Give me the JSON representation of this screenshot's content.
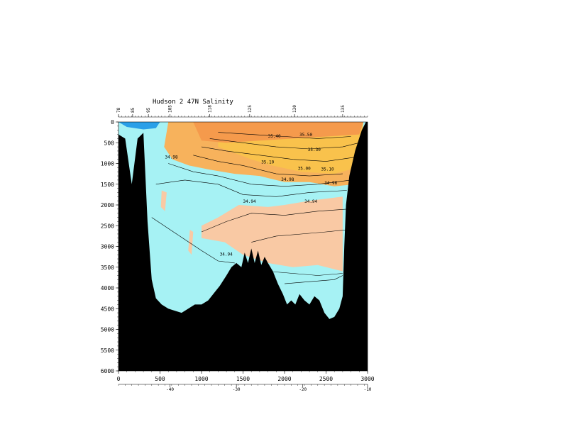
{
  "chart_data": {
    "type": "heatmap",
    "title": "Hudson 2 47N Salinity",
    "xlabel": "",
    "ylabel": "",
    "xlim": [
      0,
      3000
    ],
    "ylim": [
      6000,
      0
    ],
    "x_ticks": [
      "0",
      "500",
      "1000",
      "1500",
      "2000",
      "2500",
      "3000"
    ],
    "y_ticks": [
      "0",
      "500",
      "1000",
      "1500",
      "2000",
      "2500",
      "3000",
      "3500",
      "4000",
      "4500",
      "5000",
      "5500",
      "6000"
    ],
    "longitude_ticks": [
      "-40",
      "-30",
      "-20",
      "-10"
    ],
    "longitude_tick_positions_km": [
      620,
      1420,
      2220,
      3000
    ],
    "station_ticks": [
      "78",
      "85",
      "95",
      "105",
      "118",
      "125",
      "130",
      "135"
    ],
    "station_positions_km": [
      0,
      170,
      360,
      620,
      1100,
      1580,
      2120,
      2700
    ],
    "color_bands": [
      {
        "range": "< 34.90",
        "color": "#2a9fe8"
      },
      {
        "range": "34.90-34.94",
        "color": "#a6f2f4"
      },
      {
        "range": "34.94-34.98",
        "color": "#f9c9a4"
      },
      {
        "range": "34.98-35.10",
        "color": "#f7b25c"
      },
      {
        "range": "35.10-35.50",
        "color": "#f9c24c"
      },
      {
        "range": "> 35.50",
        "color": "#f59a4c"
      }
    ],
    "bottom_profile": [
      [
        0,
        0
      ],
      [
        0,
        300
      ],
      [
        80,
        400
      ],
      [
        160,
        1500
      ],
      [
        230,
        400
      ],
      [
        300,
        260
      ],
      [
        350,
        2400
      ],
      [
        400,
        3800
      ],
      [
        450,
        4250
      ],
      [
        520,
        4400
      ],
      [
        600,
        4500
      ],
      [
        680,
        4550
      ],
      [
        760,
        4600
      ],
      [
        840,
        4500
      ],
      [
        920,
        4400
      ],
      [
        1000,
        4400
      ],
      [
        1080,
        4300
      ],
      [
        1160,
        4100
      ],
      [
        1220,
        3950
      ],
      [
        1300,
        3700
      ],
      [
        1360,
        3500
      ],
      [
        1420,
        3400
      ],
      [
        1480,
        3500
      ],
      [
        1520,
        3150
      ],
      [
        1560,
        3400
      ],
      [
        1600,
        3050
      ],
      [
        1640,
        3400
      ],
      [
        1680,
        3100
      ],
      [
        1720,
        3450
      ],
      [
        1760,
        3250
      ],
      [
        1800,
        3400
      ],
      [
        1860,
        3600
      ],
      [
        1920,
        3900
      ],
      [
        1980,
        4150
      ],
      [
        2030,
        4400
      ],
      [
        2080,
        4300
      ],
      [
        2130,
        4400
      ],
      [
        2180,
        4150
      ],
      [
        2240,
        4300
      ],
      [
        2300,
        4400
      ],
      [
        2360,
        4200
      ],
      [
        2420,
        4300
      ],
      [
        2480,
        4600
      ],
      [
        2540,
        4750
      ],
      [
        2600,
        4700
      ],
      [
        2660,
        4500
      ],
      [
        2700,
        4200
      ],
      [
        2720,
        3000
      ],
      [
        2740,
        2000
      ],
      [
        2780,
        1300
      ],
      [
        2850,
        700
      ],
      [
        2930,
        200
      ],
      [
        2980,
        0
      ],
      [
        3000,
        0
      ]
    ],
    "contour_labels": [
      {
        "text": "34.98",
        "x": 560,
        "y": 880
      },
      {
        "text": "35.40",
        "x": 1800,
        "y": 380
      },
      {
        "text": "35.50",
        "x": 2180,
        "y": 340
      },
      {
        "text": "35.30",
        "x": 2280,
        "y": 700
      },
      {
        "text": "35.10",
        "x": 1720,
        "y": 1000
      },
      {
        "text": "35.00",
        "x": 2160,
        "y": 1150
      },
      {
        "text": "35.10",
        "x": 2440,
        "y": 1170
      },
      {
        "text": "34.98",
        "x": 1960,
        "y": 1420
      },
      {
        "text": "34.96",
        "x": 2480,
        "y": 1500
      },
      {
        "text": "34.94",
        "x": 1500,
        "y": 1950
      },
      {
        "text": "34.94",
        "x": 2240,
        "y": 1950
      },
      {
        "text": "34.94",
        "x": 1220,
        "y": 3220
      }
    ]
  }
}
